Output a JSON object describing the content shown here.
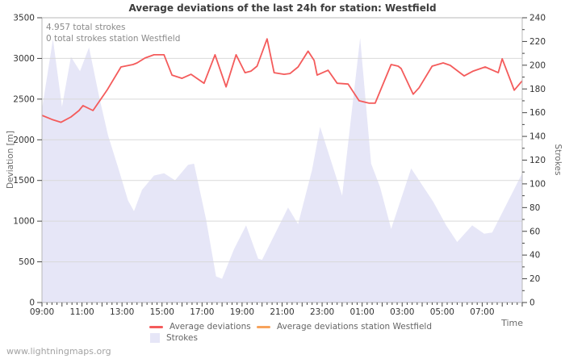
{
  "page": {
    "footer_link": "www.lightningmaps.org"
  },
  "chart_data": {
    "type": "line+area",
    "title": "Average deviations of the last 24h for station: Westfield",
    "annotations": {
      "total_strokes": "4.957 total strokes",
      "station_strokes": "0 total strokes station Westfield"
    },
    "grid": true,
    "legend_position": "bottom",
    "x_axis": {
      "label": "Time",
      "start": "09:00",
      "span_hours": 24,
      "minor_tick_minutes": 15,
      "major_tick_hours": 1,
      "tick_label_every_hours": 2,
      "tick_labels": [
        "09:00",
        "11:00",
        "13:00",
        "15:00",
        "17:00",
        "19:00",
        "21:00",
        "23:00",
        "01:00",
        "03:00",
        "05:00",
        "07:00"
      ]
    },
    "y_left": {
      "label": "Deviation [m]",
      "min": 0,
      "max": 3500,
      "tick_step": 500
    },
    "y_right": {
      "label": "Strokes",
      "min": 0,
      "max": 240,
      "tick_step": 20,
      "minor_tick_step": 10
    },
    "series": [
      {
        "name": "Average deviations",
        "type": "line",
        "axis": "left",
        "color": "#f45b5b",
        "points": [
          [
            0,
            2300
          ],
          [
            0.5,
            2250
          ],
          [
            0.95,
            2215
          ],
          [
            1.45,
            2280
          ],
          [
            1.85,
            2360
          ],
          [
            2.05,
            2420
          ],
          [
            2.55,
            2360
          ],
          [
            3.25,
            2610
          ],
          [
            3.95,
            2895
          ],
          [
            4.55,
            2925
          ],
          [
            4.75,
            2945
          ],
          [
            5.15,
            3005
          ],
          [
            5.6,
            3045
          ],
          [
            6.1,
            3045
          ],
          [
            6.5,
            2795
          ],
          [
            7.0,
            2755
          ],
          [
            7.45,
            2805
          ],
          [
            8.1,
            2695
          ],
          [
            8.65,
            3045
          ],
          [
            9.2,
            2650
          ],
          [
            9.7,
            3045
          ],
          [
            10.15,
            2825
          ],
          [
            10.45,
            2845
          ],
          [
            10.75,
            2905
          ],
          [
            11.25,
            3240
          ],
          [
            11.6,
            2825
          ],
          [
            12.1,
            2805
          ],
          [
            12.4,
            2815
          ],
          [
            12.8,
            2895
          ],
          [
            13.3,
            3090
          ],
          [
            13.6,
            2975
          ],
          [
            13.75,
            2795
          ],
          [
            14.3,
            2855
          ],
          [
            14.75,
            2695
          ],
          [
            15.3,
            2685
          ],
          [
            15.85,
            2480
          ],
          [
            16.35,
            2450
          ],
          [
            16.65,
            2450
          ],
          [
            17.45,
            2925
          ],
          [
            17.8,
            2905
          ],
          [
            17.95,
            2875
          ],
          [
            18.55,
            2560
          ],
          [
            18.85,
            2640
          ],
          [
            19.5,
            2905
          ],
          [
            20.05,
            2945
          ],
          [
            20.4,
            2915
          ],
          [
            21.1,
            2785
          ],
          [
            21.55,
            2845
          ],
          [
            22.15,
            2895
          ],
          [
            22.8,
            2825
          ],
          [
            23.0,
            2995
          ],
          [
            23.6,
            2610
          ],
          [
            24.0,
            2725
          ]
        ]
      },
      {
        "name": "Average deviations station Westfield",
        "type": "line",
        "axis": "left",
        "color": "#f7a35c",
        "points": []
      },
      {
        "name": "Strokes",
        "type": "area",
        "axis": "right",
        "color": "#e6e6f7",
        "points": [
          [
            0,
            163
          ],
          [
            0.55,
            222
          ],
          [
            1.0,
            165
          ],
          [
            1.45,
            207
          ],
          [
            1.9,
            195
          ],
          [
            2.35,
            215
          ],
          [
            2.85,
            174
          ],
          [
            3.3,
            141
          ],
          [
            3.8,
            114
          ],
          [
            4.3,
            86
          ],
          [
            4.6,
            77
          ],
          [
            5.0,
            95
          ],
          [
            5.6,
            107
          ],
          [
            6.1,
            109
          ],
          [
            6.65,
            103
          ],
          [
            7.3,
            116
          ],
          [
            7.6,
            117
          ],
          [
            8.2,
            70
          ],
          [
            8.7,
            22
          ],
          [
            9.0,
            20
          ],
          [
            9.6,
            45
          ],
          [
            10.2,
            65
          ],
          [
            10.8,
            37
          ],
          [
            11.0,
            36
          ],
          [
            12.3,
            80
          ],
          [
            12.8,
            66
          ],
          [
            13.5,
            112
          ],
          [
            13.9,
            148
          ],
          [
            15.0,
            90
          ],
          [
            15.9,
            223
          ],
          [
            16.45,
            117
          ],
          [
            16.9,
            97
          ],
          [
            17.45,
            62
          ],
          [
            18.45,
            113
          ],
          [
            19.55,
            85
          ],
          [
            20.2,
            65
          ],
          [
            20.75,
            51
          ],
          [
            21.5,
            65
          ],
          [
            22.1,
            58
          ],
          [
            22.5,
            59
          ],
          [
            23.7,
            99
          ],
          [
            24,
            109
          ]
        ]
      }
    ]
  }
}
